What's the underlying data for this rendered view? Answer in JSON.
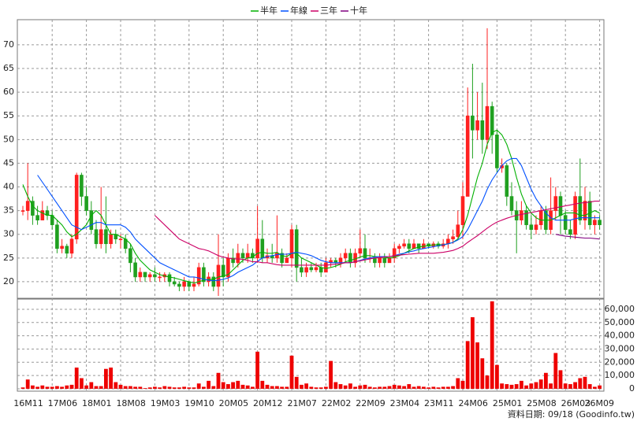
{
  "chart_data": [
    {
      "type": "candlestick",
      "legend": "top",
      "grid": true,
      "up_color": "#ff2020",
      "down_color": "#20a020",
      "categories": [
        "16M11",
        null,
        null,
        null,
        null,
        null,
        null,
        "17M06",
        null,
        null,
        null,
        null,
        null,
        null,
        "18M01",
        null,
        null,
        null,
        null,
        null,
        null,
        "18M08",
        null,
        null,
        null,
        null,
        null,
        null,
        "19M03",
        null,
        null,
        null,
        null,
        null,
        null,
        "19M10",
        null,
        null,
        null,
        null,
        null,
        null,
        "20M05",
        null,
        null,
        null,
        null,
        null,
        null,
        "20M12",
        null,
        null,
        null,
        null,
        null,
        null,
        "21M07",
        null,
        null,
        null,
        null,
        null,
        null,
        "22M02",
        null,
        null,
        null,
        null,
        null,
        null,
        "22M09",
        null,
        null,
        null,
        null,
        null,
        null,
        "23M04",
        null,
        null,
        null,
        null,
        null,
        null,
        "23M11",
        null,
        null,
        null,
        null,
        null,
        null,
        "24M06",
        null,
        null,
        null,
        null,
        null,
        null,
        "25M01",
        null,
        null,
        null,
        null,
        null,
        null,
        "25M08",
        null,
        null,
        null,
        null,
        null,
        null,
        "26M03",
        null,
        null,
        null,
        null,
        null,
        "26M09"
      ],
      "open": [
        35,
        35,
        37,
        34,
        33,
        35,
        34,
        32,
        27,
        27.5,
        26,
        29,
        42.5,
        38,
        35,
        31,
        28,
        31,
        28,
        30,
        29,
        29,
        27,
        24,
        21,
        22,
        21,
        21.5,
        21,
        21,
        21.5,
        20,
        19.5,
        19,
        20,
        19,
        19.5,
        23,
        20,
        21,
        19,
        23.5,
        21,
        25,
        24,
        26,
        25,
        26,
        25,
        29,
        25,
        25.5,
        25,
        26,
        24,
        25,
        31,
        23,
        22,
        23,
        22.5,
        23,
        22,
        24,
        24.5,
        24,
        25,
        26,
        24,
        26,
        27,
        25,
        25,
        24,
        25,
        24,
        25,
        27,
        27.5,
        28,
        27,
        28,
        27,
        28,
        27.5,
        28,
        27.5,
        28,
        29,
        29.5,
        32,
        38,
        55,
        52,
        54,
        50,
        57,
        51,
        44,
        44.5,
        38,
        35,
        33,
        35,
        32,
        31,
        32,
        35,
        31,
        35,
        38,
        34,
        31,
        30,
        38,
        33,
        37,
        32,
        33
      ],
      "high": [
        36,
        45,
        38,
        36,
        37,
        36,
        35,
        33,
        29,
        28,
        30,
        43,
        43,
        40,
        37,
        33,
        40,
        38,
        31,
        31,
        30,
        30,
        28,
        25,
        23,
        22,
        22,
        23,
        22,
        22,
        22,
        21,
        20,
        21,
        20,
        21,
        24,
        24,
        22,
        22,
        30,
        25,
        26,
        27,
        28,
        27,
        28,
        27,
        36,
        33,
        27,
        28,
        34,
        27,
        26,
        32,
        32,
        25,
        24,
        24,
        24,
        24,
        25,
        25,
        25,
        26,
        27,
        27,
        27,
        31,
        30,
        27,
        26,
        26,
        26,
        26,
        28,
        28,
        29,
        29,
        29,
        28,
        29,
        28,
        28.5,
        28.5,
        29,
        30,
        31,
        35,
        41,
        61,
        66,
        60,
        62,
        73.5,
        58,
        52,
        46,
        45,
        41,
        37,
        37,
        36,
        34,
        34,
        36,
        36,
        42,
        40,
        39,
        35,
        33,
        39,
        46,
        40,
        39,
        34,
        34
      ],
      "low": [
        34,
        33,
        32,
        32,
        33,
        33,
        31,
        26,
        26,
        25,
        25,
        28,
        36,
        34,
        30,
        27,
        27,
        26,
        27,
        28,
        27,
        26,
        22,
        20,
        20,
        20,
        20,
        20,
        20,
        20,
        19,
        19,
        18,
        18,
        18,
        18,
        19,
        19,
        19,
        18,
        17,
        19,
        20,
        23,
        23,
        24,
        24,
        24,
        24,
        24,
        24,
        24,
        24,
        23,
        24,
        23,
        20,
        21,
        21,
        22,
        22,
        21,
        22,
        23,
        23,
        23,
        24,
        23,
        23,
        25,
        24,
        24,
        23,
        23,
        23,
        24,
        24,
        26,
        27,
        26,
        27,
        26,
        27,
        27,
        27,
        27,
        27,
        27,
        28,
        29,
        29,
        38,
        46,
        50,
        47,
        48,
        47,
        43,
        43,
        36,
        34,
        26,
        32,
        31,
        29,
        30,
        31,
        30,
        30,
        33,
        30,
        30,
        29,
        29,
        32,
        31,
        31,
        30,
        31
      ],
      "close": [
        35,
        37,
        34,
        33,
        35,
        34,
        32,
        27,
        27.5,
        26,
        29,
        42.5,
        38,
        35,
        31,
        28,
        31,
        28,
        30,
        29,
        29,
        27,
        24,
        21,
        22,
        21,
        21.5,
        21,
        21,
        21.5,
        20,
        19.5,
        19,
        20,
        19,
        19.5,
        23,
        20,
        21,
        19,
        23.5,
        21,
        25,
        24,
        26,
        25,
        26,
        25,
        29,
        25,
        25.5,
        25,
        26,
        24,
        25,
        31,
        23,
        22,
        23,
        22.5,
        23,
        22,
        24,
        24.5,
        24,
        25,
        26,
        24,
        26,
        27,
        25,
        25,
        24,
        25,
        24,
        25,
        27,
        27.5,
        28,
        27,
        28,
        27,
        28,
        27.5,
        28,
        27.5,
        28,
        29,
        29.5,
        32,
        38,
        55,
        52,
        54,
        50,
        57,
        51,
        44,
        44.5,
        38,
        35,
        33,
        35,
        32,
        31,
        32,
        35,
        31,
        35,
        38,
        34,
        31,
        30,
        38,
        33,
        37,
        32,
        33,
        32
      ],
      "series": [
        {
          "name": "半年",
          "color": "#00b000",
          "values": [
            40.5,
            38,
            36,
            35,
            34.5,
            34,
            34,
            33,
            32,
            30.5,
            29.5,
            30,
            31,
            32,
            34,
            35,
            34,
            32,
            30,
            30,
            29.5,
            29,
            28,
            26,
            24.5,
            23.5,
            22.5,
            22,
            21.5,
            21.2,
            21,
            20.8,
            20.5,
            20.2,
            20,
            19.7,
            20,
            20.3,
            20.5,
            20.5,
            21,
            21.2,
            21.5,
            22.5,
            23.5,
            24.5,
            25,
            25.2,
            26,
            26.2,
            26,
            26,
            26.2,
            25.5,
            25.3,
            26,
            26,
            25,
            24.5,
            24,
            23.5,
            23,
            22.8,
            23,
            23.3,
            23.7,
            24.2,
            24.5,
            24.8,
            25.2,
            25.5,
            25.5,
            25.3,
            25.3,
            25.2,
            25,
            25.2,
            25.5,
            26,
            26.5,
            27,
            27.3,
            27.5,
            27.6,
            27.8,
            27.8,
            27.8,
            28,
            28.3,
            29,
            31,
            34,
            38,
            42,
            45,
            49,
            51.5,
            52,
            51,
            49,
            46,
            42,
            38.5,
            36,
            34.5,
            33.5,
            33,
            33,
            33,
            33.5,
            34,
            34.5,
            34.5,
            34.5,
            34,
            34,
            34.5,
            35,
            34.5
          ]
        },
        {
          "name": "年線",
          "color": "#0050ff",
          "values": [
            null,
            null,
            null,
            42.5,
            41,
            39.5,
            38,
            36.5,
            35,
            33.5,
            32,
            31.5,
            31,
            31.5,
            32,
            32.5,
            32.5,
            32,
            32,
            32,
            32,
            31.5,
            30.5,
            29,
            28,
            27,
            26,
            25,
            24,
            23.5,
            23,
            22.5,
            22,
            21.5,
            21,
            21,
            20.8,
            20.5,
            20.3,
            20.2,
            20.3,
            20.5,
            20.8,
            21.3,
            22,
            22.5,
            23,
            23.5,
            24.3,
            25,
            25.3,
            25.5,
            25.7,
            25.8,
            25.8,
            26,
            26.2,
            26,
            25.8,
            25.5,
            25,
            24.5,
            24.2,
            24,
            24,
            24,
            24,
            24,
            24.2,
            24.5,
            24.8,
            25,
            25.2,
            25.3,
            25.3,
            25.3,
            25.5,
            25.8,
            26,
            26.3,
            26.5,
            26.8,
            27,
            27.2,
            27.4,
            27.6,
            27.8,
            28,
            28.3,
            28.8,
            29.5,
            31,
            33,
            35,
            37,
            39.5,
            41.5,
            43,
            44.5,
            45.5,
            46,
            46,
            44.5,
            42,
            39.5,
            37.5,
            36,
            34.5,
            33.5,
            33,
            33,
            33,
            33,
            33.3,
            33.5,
            33.5,
            33.5,
            33.5,
            33.5
          ]
        },
        {
          "name": "三年",
          "color": "#cc0066",
          "values": [
            null,
            null,
            null,
            null,
            null,
            null,
            null,
            null,
            null,
            null,
            null,
            null,
            null,
            null,
            null,
            null,
            null,
            null,
            null,
            null,
            null,
            null,
            null,
            null,
            null,
            null,
            null,
            34,
            33,
            32,
            31,
            30,
            29,
            28.5,
            28,
            27.5,
            27,
            26.8,
            26.5,
            26,
            25.5,
            25.2,
            25,
            24.8,
            24.8,
            24.7,
            24.5,
            24.2,
            24.2,
            24,
            24,
            23.8,
            23.6,
            23.5,
            23.5,
            23.5,
            23.5,
            23.5,
            23.5,
            23.5,
            23.5,
            23.5,
            23.5,
            23.6,
            23.7,
            23.8,
            24,
            24,
            24.2,
            24.4,
            24.6,
            24.8,
            25,
            25.1,
            25.2,
            25.3,
            25.5,
            25.6,
            25.7,
            25.8,
            25.9,
            26,
            26,
            26,
            26,
            26.1,
            26.2,
            26.4,
            26.6,
            27,
            27.5,
            28.3,
            29,
            29.7,
            30.5,
            31.3,
            32,
            32.6,
            33,
            33.4,
            33.7,
            34,
            34.2,
            34.4,
            34.6,
            34.8,
            35,
            35.2,
            35.4,
            35.6,
            35.8,
            36,
            36.2,
            36.4,
            36.6,
            36.7,
            36.8,
            37,
            37
          ]
        },
        {
          "name": "十年",
          "color": "#800080",
          "values": [
            null,
            null,
            null,
            null,
            null,
            null,
            null,
            null,
            null,
            null,
            null,
            null,
            null,
            null,
            null,
            null,
            null,
            null,
            null,
            null,
            null,
            null,
            null,
            null,
            null,
            null,
            null,
            null,
            null,
            null,
            null,
            null,
            null,
            null,
            null,
            null,
            null,
            null,
            null,
            null,
            null,
            null,
            null,
            null,
            null,
            null,
            null,
            null,
            null,
            null,
            null,
            null,
            null,
            null,
            null,
            null,
            null,
            null,
            null,
            null,
            null,
            null,
            null,
            null,
            null,
            null,
            null,
            null,
            null,
            null,
            null,
            null,
            null,
            null,
            null,
            null,
            null,
            null,
            null,
            null,
            null,
            null,
            null,
            null,
            null,
            null,
            null,
            null,
            null,
            null,
            null,
            null,
            null,
            null,
            null,
            null,
            null,
            null,
            null,
            null,
            null,
            null,
            null,
            null,
            null,
            null,
            null,
            null,
            null,
            30,
            29.8,
            29.6,
            29.5,
            29.4,
            29.3,
            29.2,
            29.2,
            29.1,
            29
          ]
        }
      ],
      "ylim": [
        16.5,
        75.3
      ],
      "yticks": [
        20,
        25,
        30,
        35,
        40,
        45,
        50,
        55,
        60,
        65,
        70
      ]
    },
    {
      "type": "bar",
      "color": "#ee0000",
      "grid": true,
      "values": [
        1000,
        7000,
        2500,
        1500,
        2500,
        1500,
        1500,
        2000,
        1500,
        2500,
        3000,
        16000,
        8000,
        2500,
        5000,
        2000,
        2000,
        15000,
        16000,
        5000,
        3000,
        2000,
        2000,
        1500,
        1500,
        500,
        1000,
        1500,
        1000,
        2000,
        1500,
        1000,
        1000,
        1500,
        1000,
        1000,
        4000,
        1500,
        6000,
        2000,
        12000,
        5000,
        3500,
        5000,
        6000,
        3000,
        2500,
        1500,
        28000,
        6000,
        3000,
        2000,
        2000,
        1500,
        1500,
        25000,
        9000,
        3000,
        4000,
        1500,
        1000,
        1000,
        1500,
        21000,
        5000,
        3500,
        2500,
        4000,
        1500,
        2500,
        3000,
        1500,
        1000,
        1500,
        1500,
        2000,
        3000,
        2500,
        2000,
        3500,
        1500,
        2000,
        1500,
        1000,
        1500,
        1000,
        1500,
        1500,
        2000,
        8000,
        6000,
        36000,
        54000,
        35000,
        23000,
        10000,
        66000,
        18000,
        4000,
        3500,
        3000,
        3500,
        6000,
        2500,
        4000,
        5000,
        7000,
        12000,
        4000,
        27000,
        14000,
        4000,
        3500,
        5000,
        8000,
        9000,
        3500,
        1500,
        2500
      ],
      "ylim": [
        -1800,
        67700
      ],
      "yticks": [
        0,
        {
          "value": 10000,
          "label": "10,000"
        },
        {
          "value": 20000,
          "label": "20,000"
        },
        {
          "value": 30000,
          "label": "30,000"
        },
        {
          "value": 40000,
          "label": "40,000"
        },
        {
          "value": 50000,
          "label": "50,000"
        },
        {
          "value": 60000,
          "label": "60,000"
        }
      ]
    }
  ],
  "footer": "資料日期: 09/18 (Goodinfo.tw)"
}
